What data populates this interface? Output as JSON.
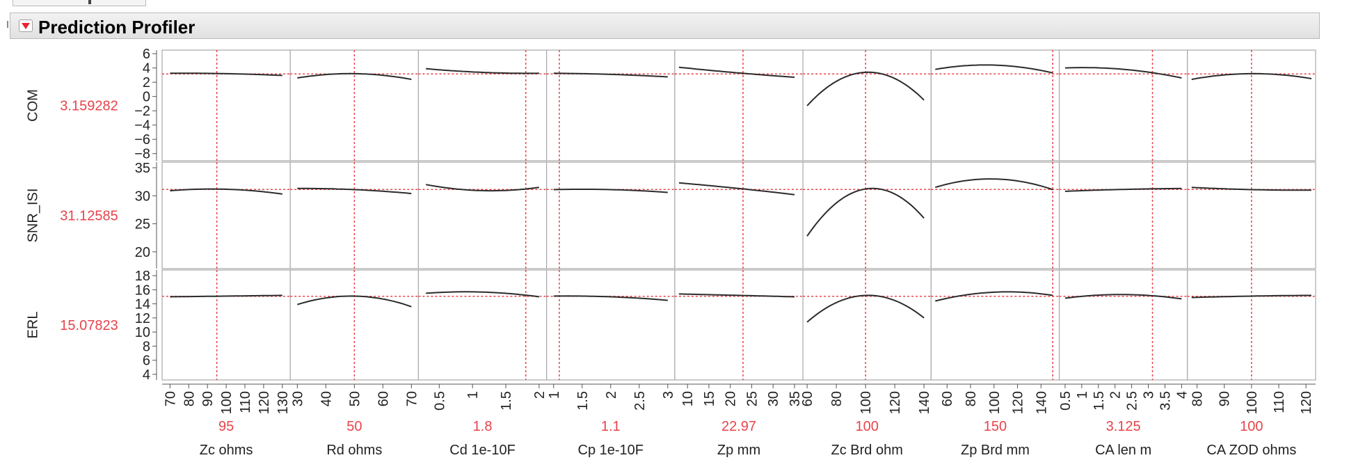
{
  "report": {
    "title": "Prediction Profiler"
  },
  "colors": {
    "reference": "#e8434a",
    "curve": "#2b2b2b",
    "frame": "#a8a8a8",
    "text": "#333333"
  },
  "chart_data": {
    "type": "line",
    "responses": [
      {
        "name": "COM",
        "current": "3.159282",
        "ylim": [
          -9,
          6.5
        ],
        "yticks": [
          6,
          4,
          2,
          0,
          -2,
          -4,
          -6,
          -8
        ],
        "ytick_labels": [
          "6",
          "4",
          "2",
          "0",
          "−2",
          "−4",
          "−6",
          "−8"
        ]
      },
      {
        "name": "SNR_ISI",
        "current": "31.12585",
        "ylim": [
          17,
          36
        ],
        "yticks": [
          35,
          30,
          25,
          20
        ],
        "ytick_labels": [
          "35",
          "30",
          "25",
          "20"
        ]
      },
      {
        "name": "ERL",
        "current": "15.07823",
        "ylim": [
          3.2,
          18.8
        ],
        "yticks": [
          18,
          16,
          14,
          12,
          10,
          8,
          6,
          4
        ],
        "ytick_labels": [
          "18",
          "16",
          "14",
          "12",
          "10",
          "8",
          "6",
          "4"
        ]
      }
    ],
    "factors": [
      {
        "name": "Zc ohms",
        "current": "95",
        "current_value": 95,
        "xlim": [
          68,
          132
        ],
        "xticks": [
          70,
          80,
          90,
          100,
          110,
          120,
          130
        ],
        "curves": [
          {
            "x": [
              70,
              100,
              130
            ],
            "y": [
              3.25,
              3.2,
              2.95
            ]
          },
          {
            "x": [
              70,
              95,
              130
            ],
            "y": [
              30.9,
              31.2,
              30.3
            ]
          },
          {
            "x": [
              70,
              100,
              130
            ],
            "y": [
              15.0,
              15.1,
              15.2
            ]
          }
        ]
      },
      {
        "name": "Rd ohms",
        "current": "50",
        "current_value": 50,
        "xlim": [
          29,
          71
        ],
        "xticks": [
          30,
          40,
          50,
          60,
          70
        ],
        "curves": [
          {
            "x": [
              30,
              50,
              70
            ],
            "y": [
              2.6,
              3.2,
              2.4
            ]
          },
          {
            "x": [
              30,
              50,
              70
            ],
            "y": [
              31.3,
              31.1,
              30.4
            ]
          },
          {
            "x": [
              30,
              50,
              70
            ],
            "y": [
              13.9,
              15.1,
              13.6
            ]
          }
        ]
      },
      {
        "name": "Cd 1e-10F",
        "current": "1.8",
        "current_value": 1.8,
        "xlim": [
          0.25,
          2.05
        ],
        "xticks": [
          0.5,
          1,
          1.5,
          2
        ],
        "ytick_labels_x": [
          "0.5",
          "1",
          "1.5",
          "2"
        ],
        "curves": [
          {
            "x": [
              0.3,
              1.1,
              2.0
            ],
            "y": [
              3.9,
              3.4,
              3.25
            ]
          },
          {
            "x": [
              0.3,
              1.3,
              2.0
            ],
            "y": [
              32.0,
              30.9,
              31.5
            ]
          },
          {
            "x": [
              0.3,
              1.0,
              2.0
            ],
            "y": [
              15.5,
              15.7,
              15.0
            ]
          }
        ]
      },
      {
        "name": "Cp 1e-10F",
        "current": "1.1",
        "current_value": 1.1,
        "xlim": [
          0.95,
          3.05
        ],
        "xticks": [
          1,
          1.5,
          2,
          2.5,
          3
        ],
        "curves": [
          {
            "x": [
              1,
              2,
              3
            ],
            "y": [
              3.25,
              3.1,
              2.75
            ]
          },
          {
            "x": [
              1,
              2,
              3
            ],
            "y": [
              31.1,
              31.1,
              30.6
            ]
          },
          {
            "x": [
              1,
              2,
              3
            ],
            "y": [
              15.1,
              15.0,
              14.5
            ]
          }
        ]
      },
      {
        "name": "Zp mm",
        "current": "22.97",
        "current_value": 22.97,
        "xlim": [
          8,
          36
        ],
        "xticks": [
          10,
          15,
          20,
          25,
          30,
          35
        ],
        "curves": [
          {
            "x": [
              8,
              22,
              35
            ],
            "y": [
              4.1,
              3.3,
              2.7
            ]
          },
          {
            "x": [
              8,
              22,
              35
            ],
            "y": [
              32.3,
              31.3,
              30.2
            ]
          },
          {
            "x": [
              8,
              22,
              35
            ],
            "y": [
              15.4,
              15.2,
              15.0
            ]
          }
        ]
      },
      {
        "name": "Zc Brd ohm",
        "current": "100",
        "current_value": 100,
        "xlim": [
          60,
          142
        ],
        "xticks": [
          60,
          80,
          100,
          120,
          140
        ],
        "curves": [
          {
            "x": [
              60,
              103,
              140
            ],
            "y": [
              -1.3,
              3.4,
              -0.5
            ]
          },
          {
            "x": [
              60,
              103,
              140
            ],
            "y": [
              22.8,
              31.3,
              26.0
            ]
          },
          {
            "x": [
              60,
              100,
              140
            ],
            "y": [
              11.4,
              15.2,
              12.0
            ]
          }
        ]
      },
      {
        "name": "Zp Brd mm",
        "current": "150",
        "current_value": 150,
        "xlim": [
          50,
          152
        ],
        "xticks": [
          60,
          80,
          100,
          120,
          140
        ],
        "curves": [
          {
            "x": [
              50,
              100,
              150
            ],
            "y": [
              3.8,
              4.4,
              3.3
            ]
          },
          {
            "x": [
              50,
              100,
              150
            ],
            "y": [
              31.5,
              33.0,
              31.1
            ]
          },
          {
            "x": [
              50,
              110,
              150
            ],
            "y": [
              14.4,
              15.7,
              15.2
            ]
          }
        ]
      },
      {
        "name": "CA len m",
        "current": "3.125",
        "current_value": 3.125,
        "xlim": [
          0.45,
          4.05
        ],
        "xticks": [
          0.5,
          1,
          1.5,
          2,
          2.5,
          3,
          3.5,
          4
        ],
        "curves": [
          {
            "x": [
              0.5,
              2.0,
              4.0
            ],
            "y": [
              4.0,
              3.9,
              2.6
            ]
          },
          {
            "x": [
              0.5,
              2.0,
              4.0
            ],
            "y": [
              30.8,
              31.1,
              31.3
            ]
          },
          {
            "x": [
              0.5,
              2.5,
              4.0
            ],
            "y": [
              14.8,
              15.3,
              14.7
            ]
          }
        ]
      },
      {
        "name": "CA ZOD ohms",
        "current": "100",
        "current_value": 100,
        "xlim": [
          78,
          122
        ],
        "xticks": [
          80,
          90,
          100,
          110,
          120
        ],
        "curves": [
          {
            "x": [
              78,
              100,
              122
            ],
            "y": [
              2.4,
              3.2,
              2.5
            ]
          },
          {
            "x": [
              78,
              100,
              122
            ],
            "y": [
              31.5,
              31.1,
              31.0
            ]
          },
          {
            "x": [
              78,
              100,
              122
            ],
            "y": [
              14.9,
              15.1,
              15.2
            ]
          }
        ]
      }
    ]
  }
}
